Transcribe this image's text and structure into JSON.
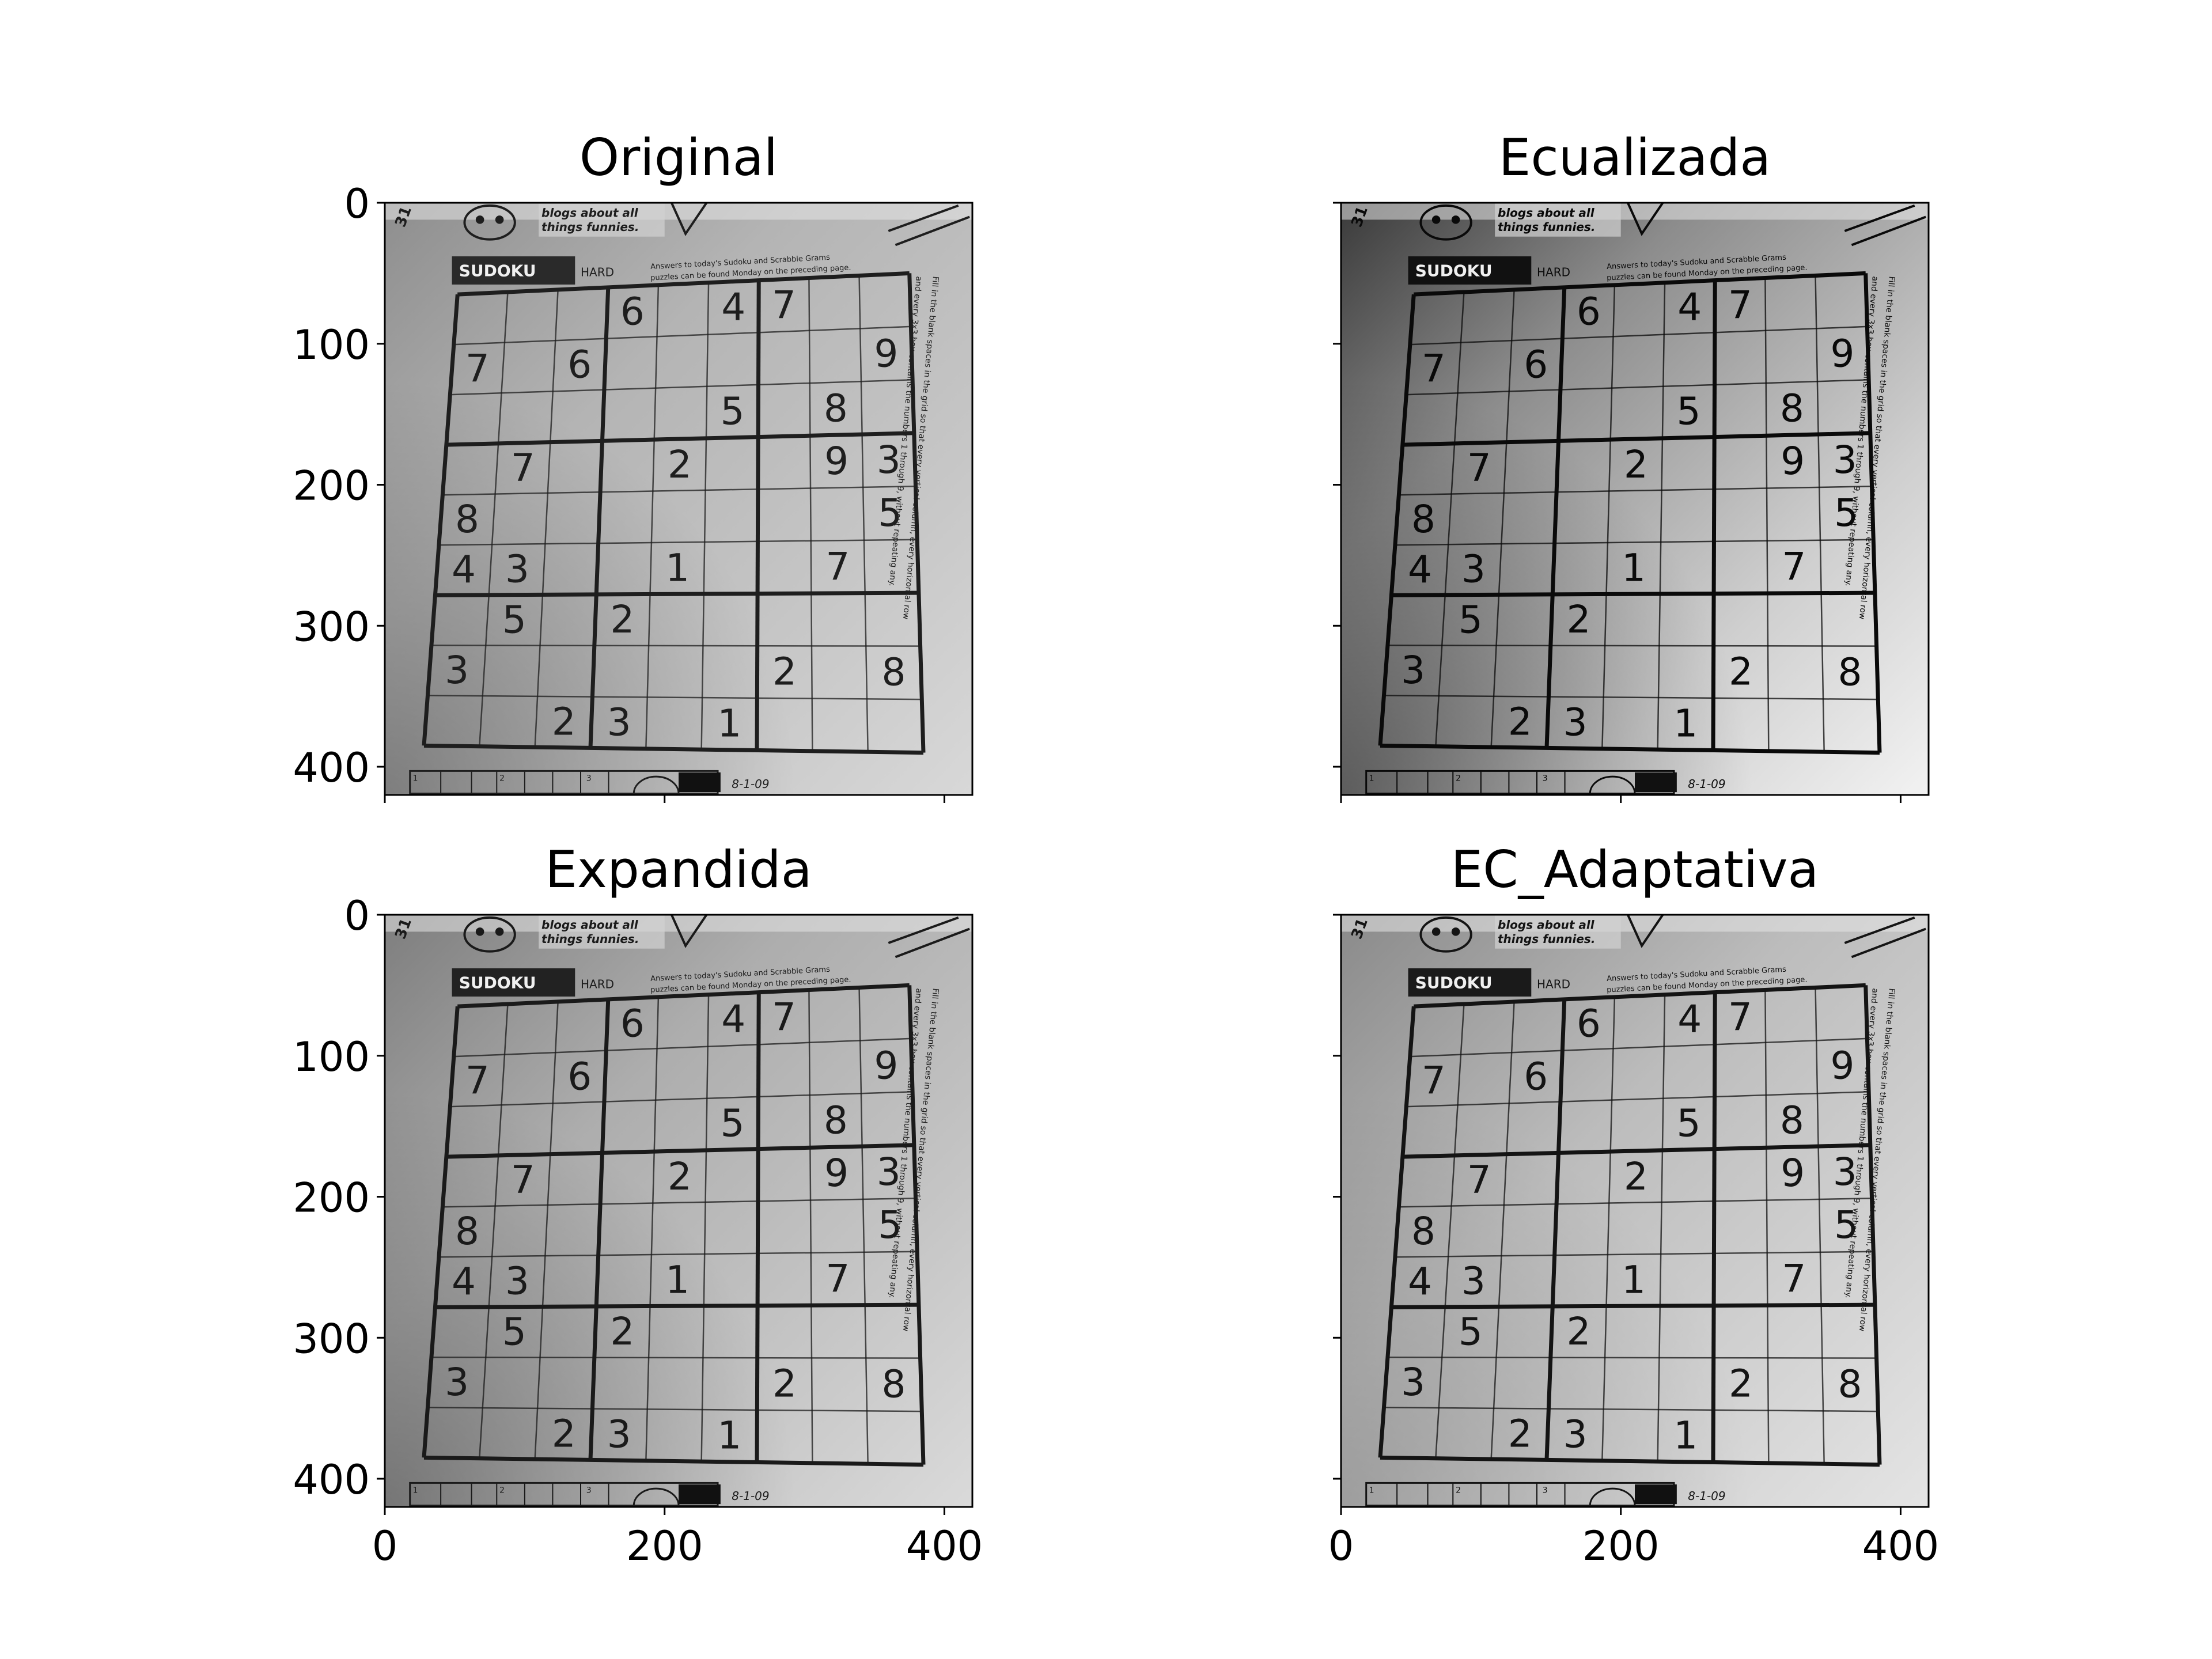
{
  "figure": {
    "panels": [
      {
        "id": "original",
        "title": "Original",
        "variant": "original",
        "y_ticks": [
          "0",
          "100",
          "200",
          "300",
          "400"
        ],
        "x_ticks": [],
        "show_y_tick_labels": true
      },
      {
        "id": "ecualizada",
        "title": "Ecualizada",
        "variant": "equalized",
        "y_ticks": [],
        "x_ticks": [],
        "show_y_tick_labels": false
      },
      {
        "id": "expandida",
        "title": "Expandida",
        "variant": "expanded",
        "y_ticks": [
          "0",
          "100",
          "200",
          "300",
          "400"
        ],
        "x_ticks": [
          "0",
          "200",
          "400"
        ],
        "show_y_tick_labels": true
      },
      {
        "id": "ec_adaptativa",
        "title": "EC_Adaptativa",
        "variant": "adaptive",
        "y_ticks": [],
        "x_ticks": [
          "0",
          "200",
          "400"
        ],
        "show_y_tick_labels": false
      }
    ],
    "photo": {
      "page_number": "31",
      "blog_caption_line1": "blogs about all",
      "blog_caption_line2": "things funnies.",
      "puzzle_name": "SUDOKU",
      "difficulty": "HARD",
      "answers_line1": "Answers to today's Sudoku and Scrabble Grams",
      "answers_line2": "puzzles can be found Monday on the preceding page.",
      "side_instructions_line1": "Fill in the blank spaces in the grid so that every vertical column, every horizontal row",
      "side_instructions_line2": "and every 3x3 box contains the numbers 1 through 9, without repeating any.",
      "bottom_date": "8-1-09",
      "bottom_small_numbers": [
        "1",
        "2",
        "3"
      ],
      "grid_rows": [
        [
          "",
          "",
          "",
          "6",
          "",
          "4",
          "7",
          "",
          ""
        ],
        [
          "7",
          "",
          "6",
          "",
          "",
          "",
          "",
          "",
          "9"
        ],
        [
          "",
          "",
          "",
          "",
          "",
          "5",
          "",
          "8",
          ""
        ],
        [
          "",
          "7",
          "",
          "",
          "2",
          "",
          "",
          "9",
          "3"
        ],
        [
          "8",
          "",
          "",
          "",
          "",
          "",
          "",
          "",
          "5"
        ],
        [
          "4",
          "3",
          "",
          "",
          "1",
          "",
          "",
          "7",
          ""
        ],
        [
          "",
          "5",
          "",
          "2",
          "",
          "",
          "",
          "",
          ""
        ],
        [
          "3",
          "",
          "",
          "",
          "",
          "",
          "2",
          "",
          "8"
        ],
        [
          "",
          "",
          "2",
          "3",
          "",
          "1",
          "",
          "",
          ""
        ]
      ]
    }
  }
}
